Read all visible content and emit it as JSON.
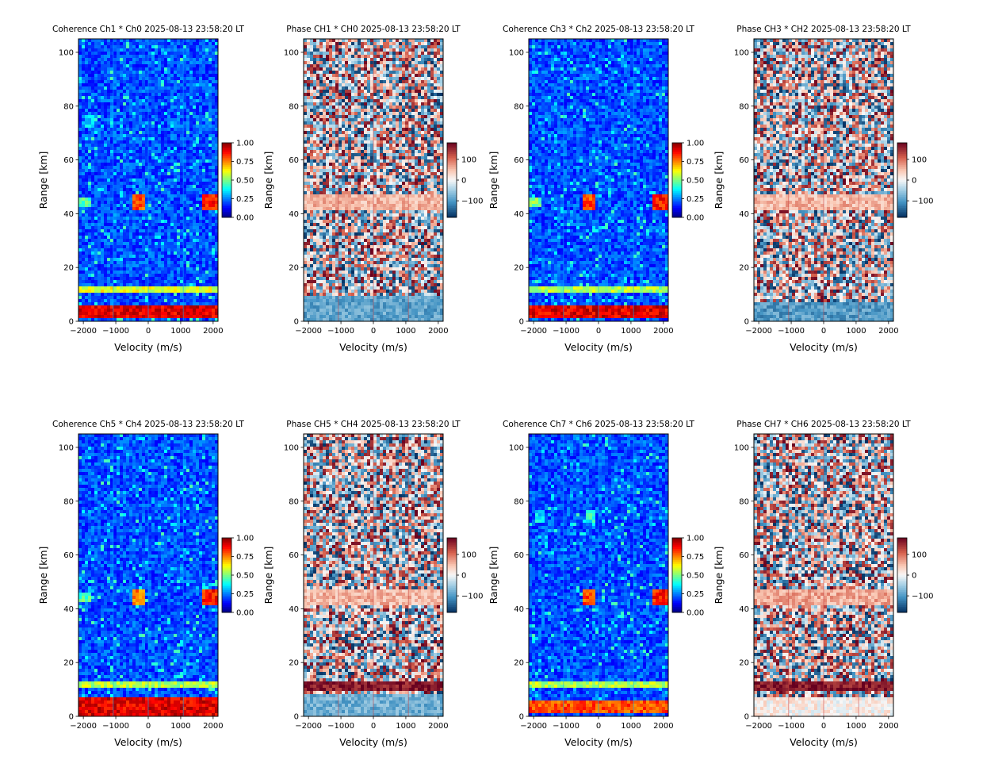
{
  "figure": {
    "background": "#ffffff"
  },
  "chart_data": [
    {
      "type": "heatmap",
      "kind": "coherence",
      "title": "Coherence Ch1 * Ch0 2025-08-13 23:58:20 LT",
      "xlabel": "Velocity (m/s)",
      "ylabel": "Range [km]",
      "xlim": [
        -2150,
        2150
      ],
      "ylim": [
        0,
        105
      ],
      "xticks": [
        -2000,
        -1000,
        0,
        1000,
        2000
      ],
      "yticks": [
        0,
        20,
        40,
        60,
        80,
        100
      ],
      "colormap": "jet",
      "colorbar": {
        "range": [
          0.0,
          1.0
        ],
        "ticks": [
          "0.00",
          "0.25",
          "0.50",
          "0.75",
          "1.00"
        ]
      },
      "grid": false,
      "features": [
        {
          "range_km": [
            1,
            6
          ],
          "velocity": [
            -2150,
            2150
          ],
          "level": 0.9,
          "description": "bright near-range band"
        },
        {
          "range_km": [
            10.5,
            12.5
          ],
          "velocity": [
            -2150,
            2150
          ],
          "level": 0.6
        },
        {
          "range_km": [
            41,
            47
          ],
          "velocity": [
            -450,
            -50
          ],
          "level": 0.8
        },
        {
          "range_km": [
            41,
            47
          ],
          "velocity": [
            1700,
            2150
          ],
          "level": 0.85
        },
        {
          "range_km": [
            43,
            46
          ],
          "velocity": [
            -2150,
            -1750
          ],
          "level": 0.45
        },
        {
          "range_km": [
            72,
            77
          ],
          "velocity": [
            -1950,
            -1700
          ],
          "level": 0.35
        }
      ]
    },
    {
      "type": "heatmap",
      "kind": "phase",
      "title": "Phase CH1 * CH0 2025-08-13 23:58:20 LT",
      "xlabel": "Velocity (m/s)",
      "ylabel": "Range [km]",
      "xlim": [
        -2150,
        2150
      ],
      "ylim": [
        0,
        105
      ],
      "xticks": [
        -2000,
        -1000,
        0,
        1000,
        2000
      ],
      "yticks": [
        0,
        20,
        40,
        60,
        80,
        100
      ],
      "colormap": "RdBu_r",
      "colorbar": {
        "range": [
          -180,
          180
        ],
        "ticks": [
          "100",
          "0",
          "−100"
        ]
      },
      "grid": false,
      "features": [
        {
          "range_km": [
            0,
            9
          ],
          "velocity": [
            -2150,
            2150
          ],
          "level": -0.5,
          "description": "uniform light-blue near range"
        },
        {
          "range_km": [
            41,
            47
          ],
          "velocity": [
            -2150,
            2150
          ],
          "level": 0.3
        }
      ]
    },
    {
      "type": "heatmap",
      "kind": "coherence",
      "title": "Coherence Ch3 * Ch2 2025-08-13 23:58:20 LT",
      "xlabel": "Velocity (m/s)",
      "ylabel": "Range [km]",
      "xlim": [
        -2150,
        2150
      ],
      "ylim": [
        0,
        105
      ],
      "xticks": [
        -2000,
        -1000,
        0,
        1000,
        2000
      ],
      "yticks": [
        0,
        20,
        40,
        60,
        80,
        100
      ],
      "colormap": "jet",
      "colorbar": {
        "range": [
          0.0,
          1.0
        ],
        "ticks": [
          "0.00",
          "0.25",
          "0.50",
          "0.75",
          "1.00"
        ]
      },
      "grid": false,
      "features": [
        {
          "range_km": [
            1,
            6
          ],
          "velocity": [
            -2150,
            2150
          ],
          "level": 0.9
        },
        {
          "range_km": [
            10.5,
            12.5
          ],
          "velocity": [
            -2150,
            2150
          ],
          "level": 0.55
        },
        {
          "range_km": [
            41,
            47
          ],
          "velocity": [
            -450,
            -50
          ],
          "level": 0.8
        },
        {
          "range_km": [
            41,
            47
          ],
          "velocity": [
            1700,
            2150
          ],
          "level": 0.85
        },
        {
          "range_km": [
            43,
            46
          ],
          "velocity": [
            -2150,
            -1750
          ],
          "level": 0.5
        }
      ]
    },
    {
      "type": "heatmap",
      "kind": "phase",
      "title": "Phase CH3 * CH2 2025-08-13 23:58:20 LT",
      "xlabel": "Velocity (m/s)",
      "ylabel": "Range [km]",
      "xlim": [
        -2150,
        2150
      ],
      "ylim": [
        0,
        105
      ],
      "xticks": [
        -2000,
        -1000,
        0,
        1000,
        2000
      ],
      "yticks": [
        0,
        20,
        40,
        60,
        80,
        100
      ],
      "colormap": "RdBu_r",
      "colorbar": {
        "range": [
          -180,
          180
        ],
        "ticks": [
          "100",
          "0",
          "−100"
        ]
      },
      "grid": false,
      "features": [
        {
          "range_km": [
            0,
            7
          ],
          "velocity": [
            -2150,
            2150
          ],
          "level": -0.55
        },
        {
          "range_km": [
            41,
            47
          ],
          "velocity": [
            -2150,
            2150
          ],
          "level": 0.3
        }
      ]
    },
    {
      "type": "heatmap",
      "kind": "coherence",
      "title": "Coherence Ch5 * Ch4 2025-08-13 23:58:20 LT",
      "xlabel": "Velocity (m/s)",
      "ylabel": "Range [km]",
      "xlim": [
        -2150,
        2150
      ],
      "ylim": [
        0,
        105
      ],
      "xticks": [
        -2000,
        -1000,
        0,
        1000,
        2000
      ],
      "yticks": [
        0,
        20,
        40,
        60,
        80,
        100
      ],
      "colormap": "jet",
      "colorbar": {
        "range": [
          0.0,
          1.0
        ],
        "ticks": [
          "0.00",
          "0.25",
          "0.50",
          "0.75",
          "1.00"
        ]
      },
      "grid": false,
      "features": [
        {
          "range_km": [
            0.5,
            6.5
          ],
          "velocity": [
            -2150,
            2150
          ],
          "level": 0.9
        },
        {
          "range_km": [
            10.5,
            12.5
          ],
          "velocity": [
            -2150,
            2150
          ],
          "level": 0.55
        },
        {
          "range_km": [
            41,
            47
          ],
          "velocity": [
            -450,
            -50
          ],
          "level": 0.75
        },
        {
          "range_km": [
            41,
            47
          ],
          "velocity": [
            1700,
            2150
          ],
          "level": 0.85
        },
        {
          "range_km": [
            43,
            46
          ],
          "velocity": [
            -2150,
            -1750
          ],
          "level": 0.45
        }
      ]
    },
    {
      "type": "heatmap",
      "kind": "phase",
      "title": "Phase CH5 * CH4 2025-08-13 23:58:20 LT",
      "xlabel": "Velocity (m/s)",
      "ylabel": "Range [km]",
      "xlim": [
        -2150,
        2150
      ],
      "ylim": [
        0,
        105
      ],
      "xticks": [
        -2000,
        -1000,
        0,
        1000,
        2000
      ],
      "yticks": [
        0,
        20,
        40,
        60,
        80,
        100
      ],
      "colormap": "RdBu_r",
      "colorbar": {
        "range": [
          -180,
          180
        ],
        "ticks": [
          "100",
          "0",
          "−100"
        ]
      },
      "grid": false,
      "features": [
        {
          "range_km": [
            0,
            8
          ],
          "velocity": [
            -2150,
            2150
          ],
          "level": -0.45
        },
        {
          "range_km": [
            9.5,
            13
          ],
          "velocity": [
            -2150,
            2150
          ],
          "level": 0.9
        },
        {
          "range_km": [
            41,
            47
          ],
          "velocity": [
            -2150,
            2150
          ],
          "level": 0.3
        }
      ]
    },
    {
      "type": "heatmap",
      "kind": "coherence",
      "title": "Coherence Ch7 * Ch6 2025-08-13 23:58:20 LT",
      "xlabel": "Velocity (m/s)",
      "ylabel": "Range [km]",
      "xlim": [
        -2150,
        2150
      ],
      "ylim": [
        0,
        105
      ],
      "xticks": [
        -2000,
        -1000,
        0,
        1000,
        2000
      ],
      "yticks": [
        0,
        20,
        40,
        60,
        80,
        100
      ],
      "colormap": "jet",
      "colorbar": {
        "range": [
          0.0,
          1.0
        ],
        "ticks": [
          "0.00",
          "0.25",
          "0.50",
          "0.75",
          "1.00"
        ]
      },
      "grid": false,
      "features": [
        {
          "range_km": [
            1,
            6
          ],
          "velocity": [
            -2150,
            2150
          ],
          "level": 0.8
        },
        {
          "range_km": [
            10.5,
            12.5
          ],
          "velocity": [
            -2150,
            2150
          ],
          "level": 0.55
        },
        {
          "range_km": [
            41,
            47
          ],
          "velocity": [
            -450,
            -50
          ],
          "level": 0.8
        },
        {
          "range_km": [
            41,
            47
          ],
          "velocity": [
            1700,
            2150
          ],
          "level": 0.85
        },
        {
          "range_km": [
            72,
            77
          ],
          "velocity": [
            -1950,
            -1700
          ],
          "level": 0.35
        },
        {
          "range_km": [
            72,
            77
          ],
          "velocity": [
            -350,
            -50
          ],
          "level": 0.4
        }
      ]
    },
    {
      "type": "heatmap",
      "kind": "phase",
      "title": "Phase CH7 * CH6 2025-08-13 23:58:20 LT",
      "xlabel": "Velocity (m/s)",
      "ylabel": "Range [km]",
      "xlim": [
        -2150,
        2150
      ],
      "ylim": [
        0,
        105
      ],
      "xticks": [
        -2000,
        -1000,
        0,
        1000,
        2000
      ],
      "yticks": [
        0,
        20,
        40,
        60,
        80,
        100
      ],
      "colormap": "RdBu_r",
      "colorbar": {
        "range": [
          -180,
          180
        ],
        "ticks": [
          "100",
          "0",
          "−100"
        ]
      },
      "grid": false,
      "features": [
        {
          "range_km": [
            0,
            7
          ],
          "velocity": [
            -2150,
            2150
          ],
          "level": 0.05
        },
        {
          "range_km": [
            9.5,
            13
          ],
          "velocity": [
            -2150,
            2150
          ],
          "level": 0.9
        },
        {
          "range_km": [
            41,
            47
          ],
          "velocity": [
            -2150,
            2150
          ],
          "level": 0.35
        }
      ]
    }
  ]
}
